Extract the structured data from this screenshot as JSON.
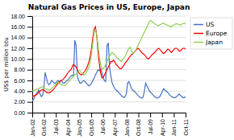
{
  "chart_data": {
    "type": "line",
    "title": "Natural Gas Prices in US, Europe, Japan",
    "y_label": "US$ per million btu",
    "x": [
      0,
      1,
      2,
      3,
      4,
      5,
      6,
      7,
      8,
      9,
      10,
      11,
      12,
      13,
      14,
      15,
      16,
      17,
      18,
      19,
      20,
      21,
      22,
      23,
      24,
      25,
      26,
      27,
      28,
      29,
      30,
      31,
      32,
      33,
      34,
      35,
      36,
      37,
      38,
      39,
      40,
      41,
      42,
      43,
      44,
      45,
      46,
      47,
      48,
      49,
      50,
      51,
      52,
      53,
      54,
      55,
      56,
      57,
      58,
      59,
      60,
      61,
      62,
      63,
      64,
      65,
      66,
      67,
      68,
      69,
      70,
      71,
      72,
      73,
      74,
      75,
      76,
      77,
      78,
      79,
      80,
      81,
      82,
      83,
      84,
      85,
      86,
      87,
      88,
      89,
      90,
      91,
      92,
      93,
      94,
      95,
      96,
      97,
      98,
      99,
      100,
      101,
      102,
      103,
      104,
      105,
      106,
      107,
      108,
      109,
      110,
      111,
      112,
      113,
      114,
      115,
      116,
      117,
      118,
      119
    ],
    "xlim": [
      0,
      119
    ],
    "xticks": [
      {
        "value": 0,
        "label": "Jan-02"
      },
      {
        "value": 9.153846153846153,
        "label": "Oct-02"
      },
      {
        "value": 18.307692307692307,
        "label": "Jul-03"
      },
      {
        "value": 27.461538461538463,
        "label": "Apr-04"
      },
      {
        "value": 36.61538461538461,
        "label": "Jan-05"
      },
      {
        "value": 45.76923076923077,
        "label": "Oct-05"
      },
      {
        "value": 54.92307692307692,
        "label": "Jul-06"
      },
      {
        "value": 64.07692307692308,
        "label": "Apr-07"
      },
      {
        "value": 73.23076923076923,
        "label": "Jan-08"
      },
      {
        "value": 82.38461538461539,
        "label": "Oct-08"
      },
      {
        "value": 91.53846153846153,
        "label": "Jul-09"
      },
      {
        "value": 100.6923076923077,
        "label": "Apr-10"
      },
      {
        "value": 109.84615384615384,
        "label": "Jan-11"
      },
      {
        "value": 119,
        "label": "Oct-11"
      }
    ],
    "ylim": [
      0.0,
      18.0
    ],
    "yticks": [
      {
        "value": 0.0,
        "label": "0.00"
      },
      {
        "value": 2.0,
        "label": "2.00"
      },
      {
        "value": 4.0,
        "label": "4.00"
      },
      {
        "value": 6.0,
        "label": "6.00"
      },
      {
        "value": 8.0,
        "label": "8.00"
      },
      {
        "value": 10.0,
        "label": "10.00"
      },
      {
        "value": 12.0,
        "label": "12.00"
      },
      {
        "value": 14.0,
        "label": "14.00"
      },
      {
        "value": 16.0,
        "label": "16.00"
      },
      {
        "value": 18.0,
        "label": "18.00"
      }
    ],
    "grid": true,
    "legend": "right",
    "series": [
      {
        "name": "US",
        "color": "#4472C4",
        "values": [
          2.2,
          2.5,
          3.0,
          3.5,
          3.8,
          4.2,
          3.5,
          3.0,
          3.2,
          4.5,
          7.5,
          6.5,
          5.5,
          5.2,
          5.5,
          6.0,
          5.8,
          5.5,
          5.5,
          5.8,
          6.0,
          5.5,
          6.0,
          5.8,
          5.5,
          5.5,
          5.8,
          6.0,
          6.2,
          6.5,
          6.8,
          7.0,
          6.8,
          13.5,
          12.5,
          6.8,
          6.0,
          5.5,
          5.5,
          5.8,
          6.0,
          5.8,
          5.5,
          5.2,
          5.0,
          5.2,
          5.5,
          6.0,
          6.5,
          7.0,
          7.5,
          8.0,
          7.8,
          8.2,
          7.5,
          6.5,
          6.0,
          5.8,
          12.5,
          13.0,
          8.5,
          6.8,
          5.5,
          5.0,
          4.5,
          4.2,
          4.0,
          3.8,
          3.5,
          3.2,
          3.0,
          2.8,
          3.0,
          3.5,
          5.5,
          5.8,
          5.2,
          4.5,
          4.2,
          4.0,
          3.8,
          3.5,
          3.2,
          3.0,
          2.8,
          2.7,
          2.9,
          4.0,
          5.5,
          5.0,
          4.5,
          4.0,
          3.8,
          3.5,
          3.2,
          3.0,
          2.8,
          2.7,
          2.8,
          3.0,
          3.5,
          4.0,
          4.5,
          4.2,
          4.0,
          3.8,
          3.5,
          3.2,
          3.0,
          2.9,
          2.8,
          2.8,
          3.0,
          3.2,
          3.5,
          3.2,
          3.0,
          2.8,
          2.8,
          3.0
        ]
      },
      {
        "name": "Europe",
        "color": "#FF0000",
        "values": [
          3.0,
          3.1,
          3.2,
          3.3,
          3.5,
          3.8,
          4.0,
          4.2,
          4.3,
          4.2,
          4.0,
          3.8,
          3.7,
          3.7,
          3.8,
          4.0,
          4.2,
          4.5,
          4.8,
          5.2,
          5.5,
          5.8,
          6.0,
          6.0,
          6.2,
          6.5,
          6.8,
          7.2,
          7.5,
          7.8,
          8.0,
          8.5,
          9.0,
          8.8,
          8.5,
          8.0,
          7.5,
          7.2,
          7.0,
          7.2,
          7.5,
          7.8,
          8.2,
          8.8,
          9.5,
          10.5,
          12.0,
          14.0,
          15.5,
          16.0,
          14.5,
          11.5,
          9.2,
          7.5,
          6.5,
          6.5,
          7.0,
          7.5,
          8.0,
          8.5,
          9.0,
          9.5,
          9.5,
          9.8,
          9.5,
          9.0,
          8.8,
          8.5,
          8.2,
          8.2,
          8.5,
          8.8,
          9.2,
          9.5,
          9.8,
          10.2,
          10.5,
          10.8,
          11.0,
          11.2,
          11.5,
          11.8,
          12.0,
          11.8,
          11.5,
          11.2,
          11.0,
          10.8,
          10.5,
          10.2,
          10.0,
          10.2,
          10.5,
          10.8,
          11.0,
          11.2,
          11.5,
          11.8,
          12.0,
          11.8,
          11.5,
          11.2,
          11.0,
          11.2,
          11.5,
          11.8,
          11.8,
          11.5,
          11.2,
          11.5,
          11.8,
          12.0,
          12.0,
          11.8,
          11.5,
          11.5,
          11.8,
          12.0,
          12.0,
          11.8
        ]
      },
      {
        "name": "Japan",
        "color": "#92D050",
        "values": [
          4.0,
          4.1,
          4.2,
          4.3,
          4.4,
          4.5,
          4.6,
          4.7,
          4.8,
          4.7,
          4.5,
          4.4,
          4.3,
          4.2,
          4.3,
          4.5,
          4.7,
          5.0,
          5.2,
          5.5,
          5.7,
          5.5,
          5.3,
          5.2,
          5.1,
          5.0,
          5.2,
          5.5,
          5.8,
          6.0,
          6.2,
          6.5,
          6.8,
          7.0,
          7.2,
          7.5,
          7.8,
          7.8,
          7.5,
          7.2,
          7.0,
          7.2,
          7.5,
          8.0,
          8.5,
          9.5,
          11.0,
          13.0,
          15.0,
          15.5,
          14.5,
          12.5,
          10.5,
          9.2,
          8.0,
          8.2,
          8.5,
          9.0,
          9.5,
          10.0,
          10.5,
          11.0,
          11.2,
          11.0,
          10.8,
          10.5,
          10.2,
          10.0,
          9.8,
          9.5,
          9.8,
          10.2,
          10.5,
          11.0,
          11.5,
          12.0,
          12.2,
          11.5,
          11.0,
          11.2,
          11.5,
          12.0,
          12.5,
          13.0,
          13.5,
          14.0,
          14.5,
          15.0,
          15.5,
          16.0,
          16.5,
          17.0,
          17.2,
          17.0,
          16.8,
          16.5,
          16.5,
          16.3,
          16.2,
          16.4,
          16.5,
          16.6,
          16.7,
          16.5,
          16.4,
          16.3,
          16.2,
          16.1,
          16.0,
          16.2,
          16.4,
          16.5,
          16.6,
          16.5,
          16.4,
          16.3,
          16.5,
          16.6,
          16.7,
          16.5
        ]
      }
    ]
  }
}
